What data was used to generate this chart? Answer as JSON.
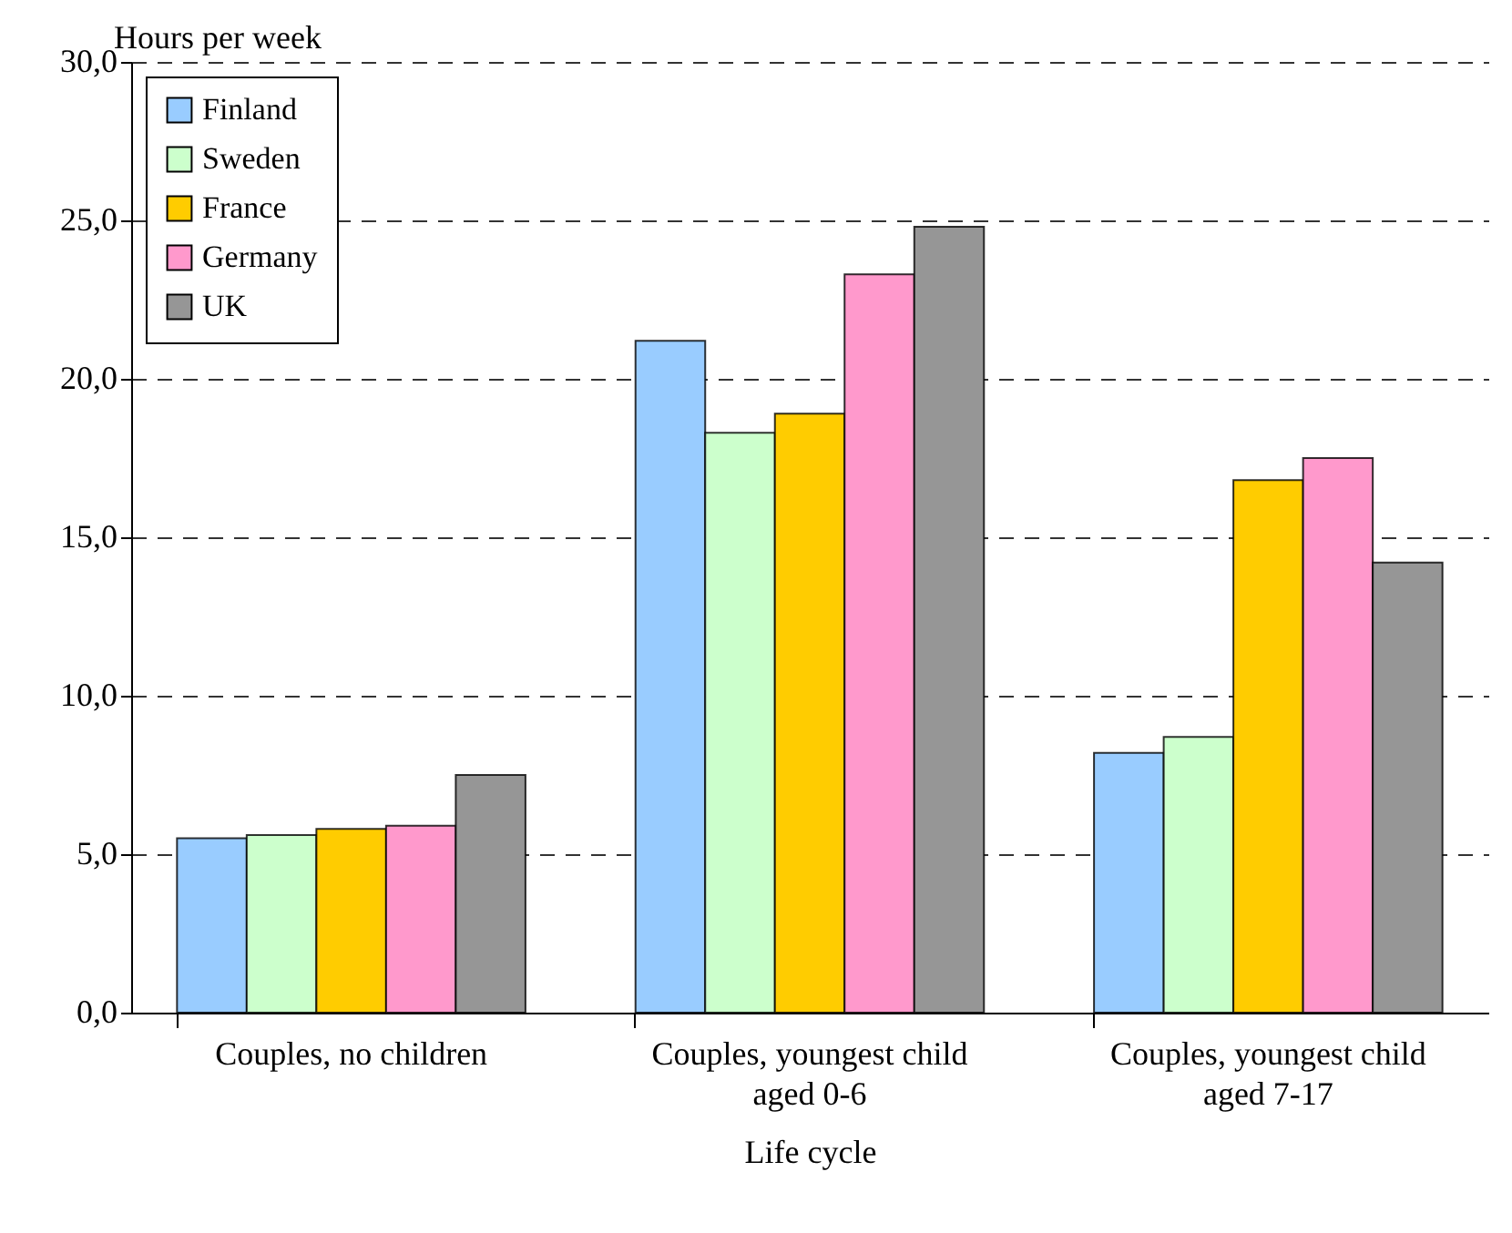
{
  "chart_data": {
    "type": "bar",
    "xlabel": "Life cycle",
    "ylabel": "Hours per week",
    "categories": [
      "Couples, no children",
      "Couples, youngest child aged 0-6",
      "Couples, youngest child aged 7-17"
    ],
    "series": [
      {
        "name": "Finland",
        "color": "#99ccff",
        "values": [
          5.5,
          21.2,
          8.2
        ]
      },
      {
        "name": "Sweden",
        "color": "#ccffcc",
        "values": [
          5.6,
          18.3,
          8.7
        ]
      },
      {
        "name": "France",
        "color": "#ffcc00",
        "values": [
          5.8,
          18.9,
          16.8
        ]
      },
      {
        "name": "Germany",
        "color": "#ff99cc",
        "values": [
          5.9,
          23.3,
          17.5
        ]
      },
      {
        "name": "UK",
        "color": "#969696",
        "values": [
          7.5,
          24.8,
          14.2
        ]
      }
    ],
    "ylim": [
      0,
      30
    ],
    "yticks": [
      {
        "value": 0,
        "label": "0,0"
      },
      {
        "value": 5,
        "label": "5,0"
      },
      {
        "value": 10,
        "label": "10,0"
      },
      {
        "value": 15,
        "label": "15,0"
      },
      {
        "value": 20,
        "label": "20,0"
      },
      {
        "value": 25,
        "label": "25,0"
      },
      {
        "value": 30,
        "label": "30,0"
      }
    ],
    "grid": "y",
    "legend": "top left"
  }
}
